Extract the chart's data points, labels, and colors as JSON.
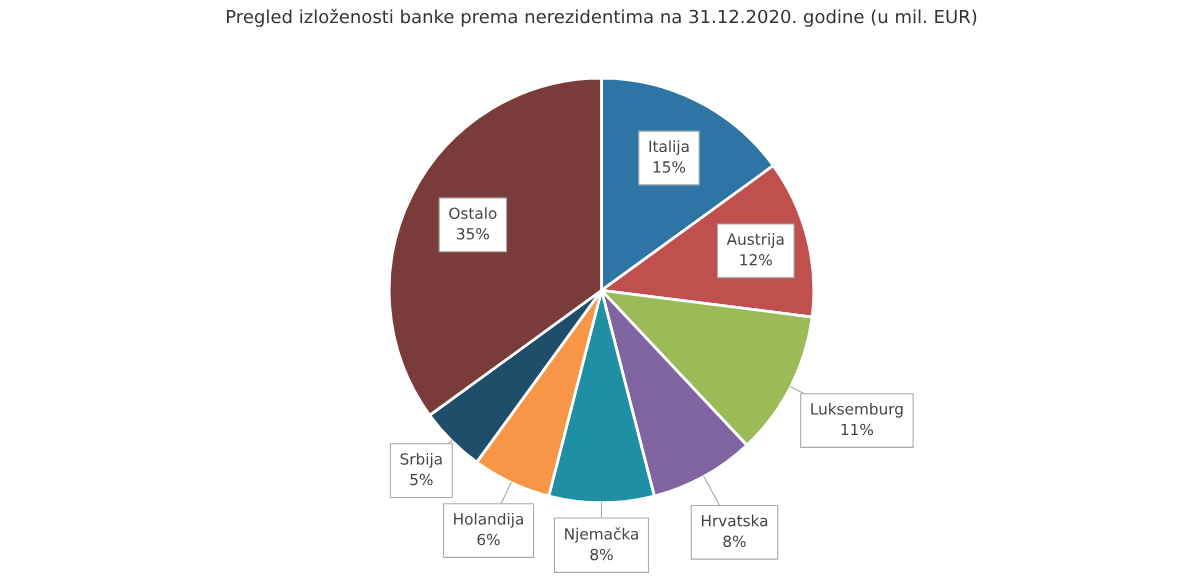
{
  "chart_data": {
    "type": "pie",
    "title": "Pregled izloženosti banke prema nerezidentima na 31.12.2020. godine (u mil. EUR)",
    "categories": [
      "Italija",
      "Austrija",
      "Luksemburg",
      "Hrvatska",
      "Njemačka",
      "Holandija",
      "Srbija",
      "Ostalo"
    ],
    "values": [
      15,
      12,
      11,
      8,
      8,
      6,
      5,
      35
    ],
    "value_labels": [
      "15%",
      "12%",
      "11%",
      "8%",
      "8%",
      "6%",
      "5%",
      "35%"
    ],
    "colors": [
      "#2e75a6",
      "#c0504d",
      "#9bbb59",
      "#8064a2",
      "#1f8fa3",
      "#f79646",
      "#1f4e6b",
      "#7a3b3b"
    ],
    "legend": false
  }
}
